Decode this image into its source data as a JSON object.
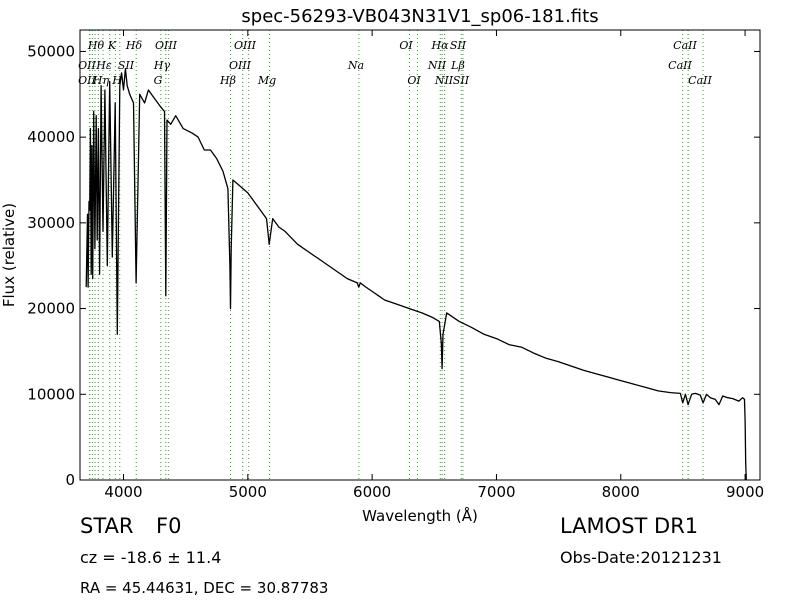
{
  "chart_data": {
    "type": "line",
    "title": "spec-56293-VB043N31V1_sp06-181.fits",
    "xlabel": "Wavelength (Å)",
    "ylabel": "Flux (relative)",
    "xlim": [
      3650,
      9120
    ],
    "ylim": [
      0,
      52500
    ],
    "xticks": [
      4000,
      5000,
      6000,
      7000,
      8000,
      9000
    ],
    "xtick_labels": [
      "4000",
      "5000",
      "6000",
      "7000",
      "8000",
      "9000"
    ],
    "yticks": [
      0,
      10000,
      20000,
      30000,
      40000,
      50000
    ],
    "ytick_labels": [
      "0",
      "10000",
      "20000",
      "30000",
      "40000",
      "50000"
    ],
    "grid": false,
    "series": [
      {
        "color": "#000000",
        "x": [
          3700,
          3710,
          3715,
          3722,
          3728,
          3734,
          3740,
          3746,
          3752,
          3760,
          3770,
          3780,
          3788,
          3798,
          3808,
          3820,
          3835,
          3850,
          3870,
          3889,
          3910,
          3933,
          3950,
          3970,
          3985,
          4000,
          4015,
          4030,
          4050,
          4080,
          4101,
          4130,
          4170,
          4200,
          4250,
          4300,
          4330,
          4340,
          4350,
          4380,
          4420,
          4480,
          4550,
          4600,
          4650,
          4700,
          4750,
          4800,
          4840,
          4856,
          4861,
          4866,
          4880,
          4920,
          4960,
          5000,
          5050,
          5100,
          5150,
          5172,
          5200,
          5250,
          5300,
          5400,
          5500,
          5600,
          5700,
          5800,
          5880,
          5893,
          5905,
          5950,
          6000,
          6100,
          6200,
          6300,
          6400,
          6480,
          6540,
          6556,
          6563,
          6570,
          6600,
          6700,
          6800,
          6900,
          7000,
          7100,
          7200,
          7300,
          7400,
          7500,
          7600,
          7700,
          7800,
          7900,
          8000,
          8100,
          8200,
          8300,
          8400,
          8480,
          8498,
          8520,
          8542,
          8570,
          8600,
          8640,
          8662,
          8690,
          8720,
          8760,
          8790,
          8820,
          8860,
          8900,
          8950,
          8980,
          8995,
          9000,
          9005,
          9010
        ],
        "y": [
          22500,
          31000,
          22500,
          32500,
          31500,
          41000,
          24000,
          39000,
          23500,
          43000,
          27000,
          42500,
          28000,
          41000,
          24000,
          46000,
          29000,
          45500,
          25000,
          46500,
          26000,
          44000,
          17000,
          46000,
          47500,
          45500,
          48000,
          46000,
          45000,
          44000,
          23000,
          45000,
          44000,
          45500,
          44500,
          43500,
          43000,
          21500,
          42000,
          41500,
          42500,
          41000,
          40500,
          40000,
          38500,
          38500,
          37500,
          36000,
          34000,
          25000,
          20000,
          27000,
          35000,
          34500,
          34000,
          33500,
          32500,
          31500,
          30500,
          27500,
          30500,
          29500,
          29000,
          27500,
          26500,
          25500,
          24500,
          23500,
          23000,
          22500,
          23000,
          22500,
          22000,
          21000,
          20500,
          20000,
          19500,
          19000,
          18500,
          16000,
          13000,
          17000,
          19500,
          18500,
          17800,
          17000,
          16500,
          15800,
          15500,
          14800,
          14200,
          13800,
          13300,
          12800,
          12400,
          12000,
          11600,
          11200,
          10800,
          10400,
          10200,
          10100,
          9000,
          10000,
          8800,
          10000,
          10100,
          9900,
          9000,
          10000,
          9600,
          9400,
          8800,
          9800,
          9600,
          9500,
          9200,
          9600,
          9400,
          7000,
          2000,
          0
        ]
      }
    ],
    "line_groups": [
      {
        "color": "#2ca02c",
        "style": "dotted",
        "wavelengths": [
          3727,
          3729,
          3750,
          3771,
          3798,
          3835,
          3889,
          3934,
          3970,
          4102,
          4300,
          4340,
          4363,
          4861,
          4959,
          5007,
          5175,
          5893,
          6300,
          6364,
          6548,
          6563,
          6583,
          6717,
          6731,
          8498,
          8542,
          8662
        ]
      }
    ],
    "line_labels_row1": [
      "Hθ",
      "K",
      "Hδ",
      "OIII",
      "OIII",
      "OI",
      "Hα",
      "SII",
      "CaII"
    ],
    "line_labels_row2": [
      "OII",
      "Hε",
      "SII",
      "Hγ",
      "OIII",
      "Na",
      "NII",
      "Lβ",
      "CaII"
    ],
    "line_labels_row3": [
      "OII",
      "Hη",
      "H",
      "G",
      "Hβ",
      "Mg",
      "OI",
      "NII",
      "SII",
      "CaII"
    ]
  },
  "info": {
    "class_label": "STAR",
    "subclass_label": "F0",
    "survey_label": "LAMOST DR1",
    "cz_text": "cz = -18.6 ± 11.4",
    "obsdate_text": "Obs-Date:20121231",
    "radec_text": "RA = 45.44631, DEC = 30.87783"
  }
}
